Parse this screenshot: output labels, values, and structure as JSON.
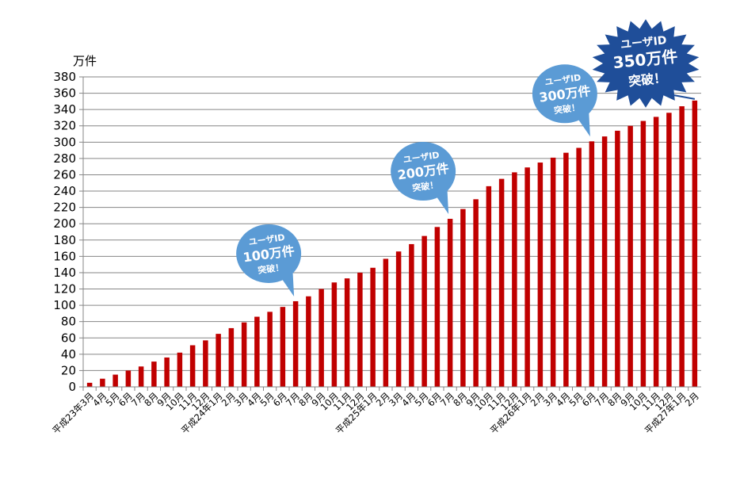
{
  "chart_data": {
    "type": "bar",
    "unit_label": "万件",
    "ylim": [
      0,
      380
    ],
    "yticks": [
      0,
      20,
      40,
      60,
      80,
      100,
      120,
      140,
      160,
      180,
      200,
      220,
      240,
      260,
      280,
      300,
      320,
      340,
      360,
      380
    ],
    "grid": true,
    "bar_color": "#c00000",
    "categories": [
      "平成23年3月",
      "4月",
      "5月",
      "6月",
      "7月",
      "8月",
      "9月",
      "10月",
      "11月",
      "12月",
      "平成24年1月",
      "2月",
      "3月",
      "4月",
      "5月",
      "6月",
      "7月",
      "8月",
      "9月",
      "10月",
      "11月",
      "12月",
      "平成25年1月",
      "2月",
      "3月",
      "4月",
      "5月",
      "6月",
      "7月",
      "8月",
      "9月",
      "10月",
      "11月",
      "12月",
      "平成26年1月",
      "2月",
      "3月",
      "4月",
      "5月",
      "6月",
      "7月",
      "8月",
      "9月",
      "10月",
      "11月",
      "12月",
      "平成27年1月",
      "2月"
    ],
    "values": [
      5,
      10,
      15,
      20,
      25,
      31,
      36,
      42,
      51,
      57,
      65,
      72,
      79,
      86,
      92,
      98,
      105,
      111,
      120,
      128,
      133,
      140,
      146,
      157,
      166,
      175,
      185,
      196,
      206,
      218,
      230,
      246,
      255,
      263,
      269,
      275,
      281,
      287,
      293,
      301,
      307,
      314,
      320,
      326,
      331,
      336,
      344,
      351
    ],
    "annotations": [
      {
        "lines": [
          "ユーザID",
          "100万件",
          "突破！"
        ],
        "index": 16,
        "color": "#5b9bd5",
        "shape": "bubble"
      },
      {
        "lines": [
          "ユーザID",
          "200万件",
          "突破！"
        ],
        "index": 28,
        "color": "#5b9bd5",
        "shape": "bubble"
      },
      {
        "lines": [
          "ユーザID",
          "300万件",
          "突破！"
        ],
        "index": 39,
        "color": "#5b9bd5",
        "shape": "bubble"
      },
      {
        "lines": [
          "ユーザID",
          "350万件",
          "突破！"
        ],
        "index": 47,
        "color": "#1f4e99",
        "shape": "star"
      }
    ]
  }
}
